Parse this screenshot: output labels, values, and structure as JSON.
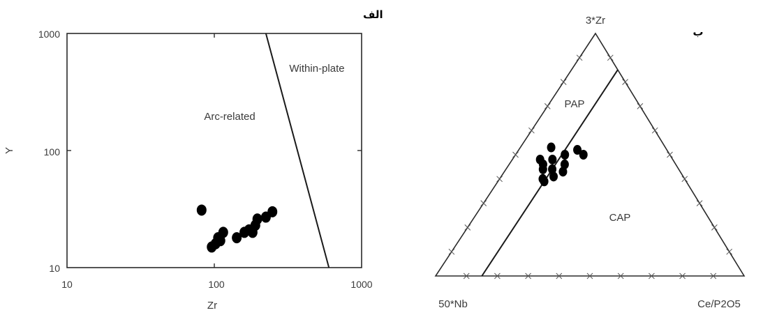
{
  "chart_data": [
    {
      "type": "scatter",
      "panel_label": "الف",
      "xscale": "log",
      "yscale": "log",
      "xlim": [
        10,
        1000
      ],
      "ylim": [
        10,
        1000
      ],
      "xticks": [
        "10",
        "100",
        "1000"
      ],
      "yticks": [
        "1000",
        "100",
        "10"
      ],
      "xlabel": "Zr",
      "ylabel": "Y",
      "regions": [
        "Within-plate",
        "Arc-related"
      ],
      "boundary_line": {
        "x": [
          224,
          600
        ],
        "y": [
          1000,
          10
        ]
      },
      "points": [
        {
          "x": 82,
          "y": 31
        },
        {
          "x": 96,
          "y": 15
        },
        {
          "x": 102,
          "y": 16
        },
        {
          "x": 106,
          "y": 18
        },
        {
          "x": 110,
          "y": 17
        },
        {
          "x": 115,
          "y": 20
        },
        {
          "x": 142,
          "y": 18
        },
        {
          "x": 160,
          "y": 20
        },
        {
          "x": 172,
          "y": 21
        },
        {
          "x": 182,
          "y": 20
        },
        {
          "x": 190,
          "y": 23
        },
        {
          "x": 196,
          "y": 26
        },
        {
          "x": 224,
          "y": 27
        },
        {
          "x": 248,
          "y": 30
        }
      ]
    },
    {
      "type": "ternary",
      "panel_label": "ب",
      "apex_labels": {
        "top": "3*Zr",
        "left": "50*Nb",
        "right": "Ce/P2O5"
      },
      "regions": [
        "PAP",
        "CAP"
      ],
      "boundary_line": {
        "from": {
          "top": 0,
          "left": 0.85,
          "right": 0.15
        },
        "to": {
          "top": 0.85,
          "left": 0,
          "right": 0.15
        }
      },
      "points": [
        {
          "top": 0.53,
          "left": 0.37,
          "right": 0.1
        },
        {
          "top": 0.48,
          "left": 0.43,
          "right": 0.09
        },
        {
          "top": 0.46,
          "left": 0.43,
          "right": 0.11
        },
        {
          "top": 0.48,
          "left": 0.39,
          "right": 0.13
        },
        {
          "top": 0.44,
          "left": 0.44,
          "right": 0.12
        },
        {
          "top": 0.44,
          "left": 0.41,
          "right": 0.15
        },
        {
          "top": 0.4,
          "left": 0.46,
          "right": 0.14
        },
        {
          "top": 0.39,
          "left": 0.46,
          "right": 0.15
        },
        {
          "top": 0.41,
          "left": 0.42,
          "right": 0.17
        },
        {
          "top": 0.43,
          "left": 0.38,
          "right": 0.19
        },
        {
          "top": 0.46,
          "left": 0.36,
          "right": 0.18
        },
        {
          "top": 0.5,
          "left": 0.34,
          "right": 0.16
        },
        {
          "top": 0.52,
          "left": 0.29,
          "right": 0.19
        },
        {
          "top": 0.5,
          "left": 0.28,
          "right": 0.22
        }
      ]
    }
  ]
}
